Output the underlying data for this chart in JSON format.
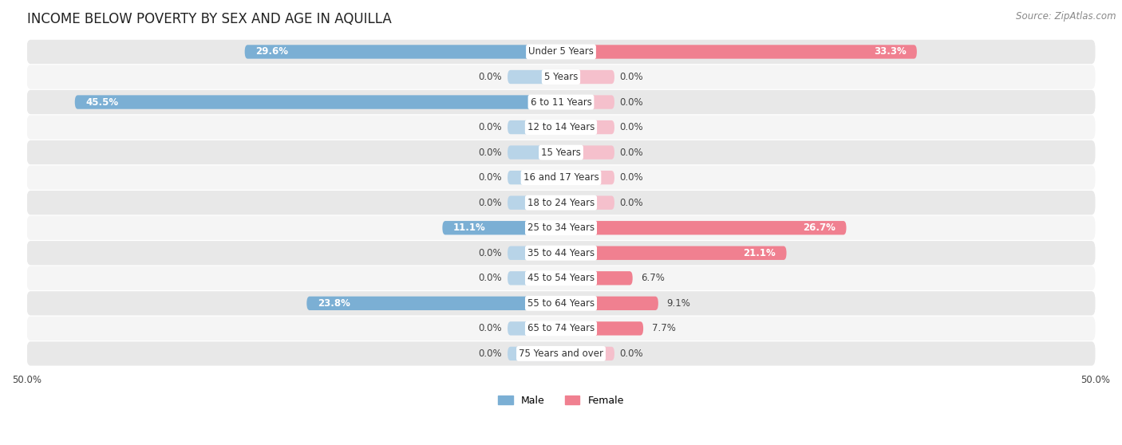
{
  "title": "INCOME BELOW POVERTY BY SEX AND AGE IN AQUILLA",
  "source": "Source: ZipAtlas.com",
  "categories": [
    "Under 5 Years",
    "5 Years",
    "6 to 11 Years",
    "12 to 14 Years",
    "15 Years",
    "16 and 17 Years",
    "18 to 24 Years",
    "25 to 34 Years",
    "35 to 44 Years",
    "45 to 54 Years",
    "55 to 64 Years",
    "65 to 74 Years",
    "75 Years and over"
  ],
  "male": [
    29.6,
    0.0,
    45.5,
    0.0,
    0.0,
    0.0,
    0.0,
    11.1,
    0.0,
    0.0,
    23.8,
    0.0,
    0.0
  ],
  "female": [
    33.3,
    0.0,
    0.0,
    0.0,
    0.0,
    0.0,
    0.0,
    26.7,
    21.1,
    6.7,
    9.1,
    7.7,
    0.0
  ],
  "male_color": "#7bafd4",
  "female_color": "#f08090",
  "male_color_light": "#b8d4e8",
  "female_color_light": "#f5c0cc",
  "male_label": "Male",
  "female_label": "Female",
  "xlim": 50.0,
  "bar_height": 0.55,
  "stub_size": 5.0,
  "row_colors": [
    "#e8e8e8",
    "#f5f5f5"
  ],
  "title_fontsize": 12,
  "label_fontsize": 8.5,
  "category_fontsize": 8.5,
  "source_fontsize": 8.5
}
